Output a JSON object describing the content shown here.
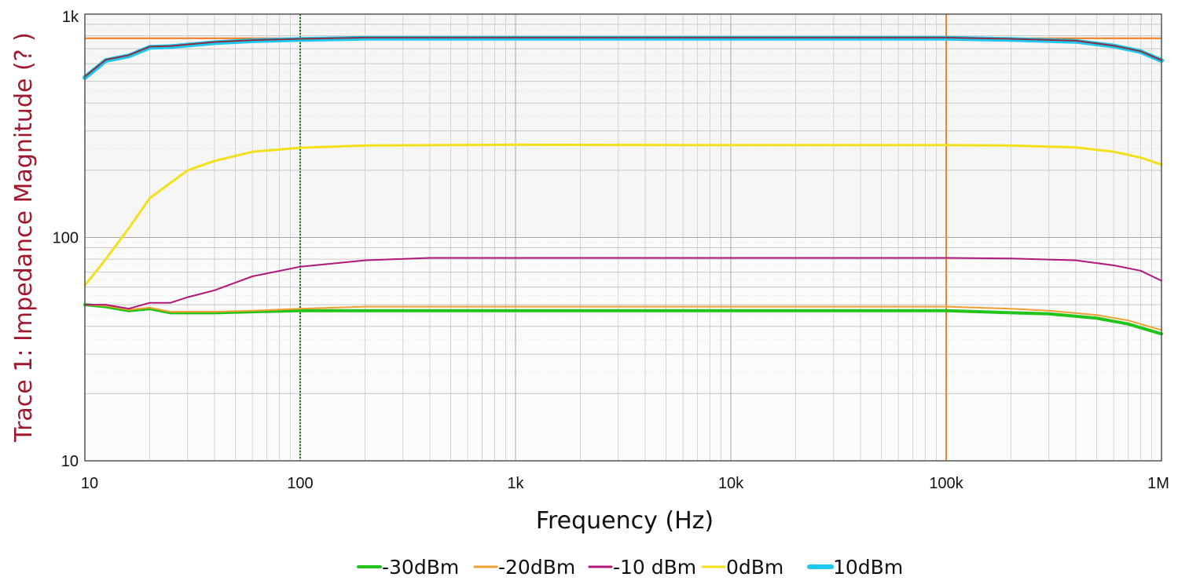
{
  "chart_data": {
    "type": "line",
    "xlabel": "Frequency (Hz)",
    "ylabel": "Trace 1: Impedance Magnitude (? )",
    "ylabel_color": "#a0182e",
    "x_scale": "log",
    "y_scale": "log",
    "xlim": [
      10,
      1000000
    ],
    "ylim": [
      10,
      1000
    ],
    "grid": true,
    "legend_position": "bottom",
    "x_ticks": [
      {
        "value": 10,
        "label": "10"
      },
      {
        "value": 100,
        "label": "100"
      },
      {
        "value": 1000,
        "label": "1k"
      },
      {
        "value": 10000,
        "label": "10k"
      },
      {
        "value": 100000,
        "label": "100k"
      },
      {
        "value": 1000000,
        "label": "1M"
      }
    ],
    "y_ticks": [
      {
        "value": 10,
        "label": "10"
      },
      {
        "value": 100,
        "label": "100"
      },
      {
        "value": 1000,
        "label": "1k"
      }
    ],
    "cursors": [
      {
        "orientation": "vertical",
        "x": 100,
        "color": "#1a7a1a",
        "style": "dotted"
      },
      {
        "orientation": "vertical",
        "x": 100000,
        "color": "#e8882a",
        "style": "solid"
      },
      {
        "orientation": "horizontal",
        "y": 780,
        "color": "#f07a1a",
        "style": "solid"
      }
    ],
    "series": [
      {
        "name": "-30dBm",
        "color": "#22c41c",
        "width": 4,
        "x": [
          10,
          12.5,
          16,
          20,
          25,
          40,
          60,
          100,
          200,
          1000,
          10000,
          100000,
          200000,
          300000,
          500000,
          700000,
          1000000
        ],
        "values": [
          50,
          49,
          47,
          48,
          46,
          46,
          46.5,
          47,
          47,
          47,
          47,
          47,
          46,
          45.5,
          43.5,
          41,
          37
        ]
      },
      {
        "name": "-20dBm",
        "color": "#f0a030",
        "width": 2,
        "x": [
          10,
          12.5,
          16,
          20,
          25,
          40,
          60,
          100,
          200,
          1000,
          10000,
          100000,
          200000,
          300000,
          500000,
          700000,
          1000000
        ],
        "values": [
          50,
          49.5,
          47.5,
          48.5,
          46.5,
          46.5,
          47,
          48,
          49,
          49,
          49,
          49,
          48,
          47,
          45,
          42.5,
          38.5
        ]
      },
      {
        "name": "-10 dBm",
        "color": "#b0187a",
        "width": 2,
        "x": [
          10,
          12.5,
          16,
          20,
          25,
          30,
          40,
          60,
          100,
          200,
          400,
          1000,
          10000,
          100000,
          200000,
          400000,
          600000,
          800000,
          1000000
        ],
        "values": [
          50,
          50,
          48,
          51,
          51,
          54,
          58,
          67,
          74,
          79,
          81,
          81,
          81,
          81,
          80.5,
          79,
          75,
          71,
          64
        ]
      },
      {
        "name": "0dBm",
        "color": "#f2e01a",
        "width": 3,
        "x": [
          10,
          12.5,
          16,
          20,
          30,
          40,
          60,
          100,
          200,
          1000,
          10000,
          100000,
          200000,
          400000,
          600000,
          800000,
          1000000
        ],
        "values": [
          61,
          80,
          110,
          150,
          200,
          220,
          242,
          252,
          258,
          260,
          259,
          259,
          258,
          253,
          242,
          228,
          212
        ]
      },
      {
        "name": "10dBm",
        "color": "#1ec8f0",
        "width": 6,
        "x": [
          10,
          12.5,
          16,
          20,
          25,
          40,
          60,
          100,
          200,
          1000,
          10000,
          100000,
          200000,
          400000,
          600000,
          800000,
          1000000
        ],
        "values": [
          520,
          620,
          650,
          710,
          715,
          745,
          760,
          770,
          780,
          780,
          780,
          780,
          770,
          755,
          720,
          680,
          620
        ]
      }
    ],
    "overlay_series": {
      "color": "#8a3040",
      "width": 2,
      "x": [
        10,
        12.5,
        16,
        20,
        25,
        40,
        60,
        100,
        200,
        1000,
        10000,
        100000,
        200000,
        400000,
        600000,
        800000,
        1000000
      ],
      "values": [
        525,
        625,
        655,
        715,
        720,
        750,
        765,
        775,
        785,
        785,
        785,
        785,
        775,
        760,
        722,
        682,
        622
      ]
    }
  }
}
